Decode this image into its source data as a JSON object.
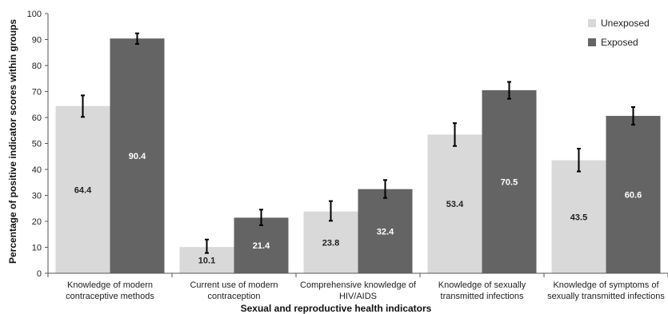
{
  "chart_data": {
    "type": "bar",
    "title": "",
    "xlabel": "Sexual and reproductive health indicators",
    "ylabel": "Percentage of positive indicator scores within groups",
    "ylim": [
      0,
      100
    ],
    "yticks": [
      0,
      10,
      20,
      30,
      40,
      50,
      60,
      70,
      80,
      90,
      100
    ],
    "grid": false,
    "legend_position": "top-right",
    "categories": [
      [
        "Knowledge of modern",
        "contraceptive methods"
      ],
      [
        "Current use of modern",
        "contraception"
      ],
      [
        "Comprehensive knowledge of",
        "HIV/AIDS"
      ],
      [
        "Knowledge of sexually",
        "transmitted infections"
      ],
      [
        "Knowledge of symptoms of",
        "sexually transmitted infections"
      ]
    ],
    "series": [
      {
        "name": "Unexposed",
        "color": "#d9d9d9",
        "label_color": "#222222",
        "values": [
          64.4,
          10.1,
          23.8,
          53.4,
          43.5
        ],
        "error_low": [
          60.2,
          7.8,
          20.2,
          49.0,
          39.2
        ],
        "error_high": [
          68.5,
          13.0,
          27.8,
          57.8,
          48.0
        ]
      },
      {
        "name": "Exposed",
        "color": "#646464",
        "label_color": "#ffffff",
        "values": [
          90.4,
          21.4,
          32.4,
          70.5,
          60.6
        ],
        "error_low": [
          88.3,
          18.5,
          29.0,
          67.2,
          57.2
        ],
        "error_high": [
          92.4,
          24.5,
          35.9,
          73.7,
          64.0
        ]
      }
    ]
  }
}
